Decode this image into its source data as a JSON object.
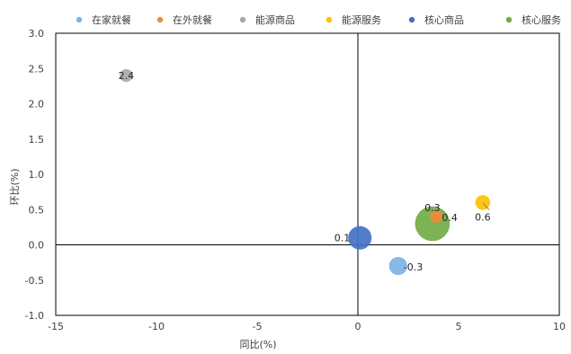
{
  "chart_data": {
    "type": "bubble",
    "xlabel": "同比(%)",
    "ylabel": "环比(%)",
    "xlim": [
      -15,
      10
    ],
    "ylim": [
      -1.0,
      3.0
    ],
    "x_ticks": [
      "-15",
      "-10",
      "-5",
      "0",
      "5",
      "10"
    ],
    "y_ticks": [
      "-1.0",
      "-0.5",
      "0.0",
      "0.5",
      "1.0",
      "1.5",
      "2.0",
      "2.5",
      "3.0"
    ],
    "grid": false,
    "legend_position": "top",
    "series": [
      {
        "name": "在家就餐",
        "color": "#7FB2E5",
        "points": [
          {
            "x": 2.0,
            "y": -0.3,
            "size": 0.6,
            "label": "-0.3"
          }
        ]
      },
      {
        "name": "在外就餐",
        "color": "#ED8B3B",
        "points": [
          {
            "x": 3.9,
            "y": 0.4,
            "size": 0.3,
            "label": "0.4"
          }
        ]
      },
      {
        "name": "能源商品",
        "color": "#A9A9A9",
        "points": [
          {
            "x": -11.5,
            "y": 2.4,
            "size": 0.3,
            "label": "2.4"
          }
        ]
      },
      {
        "name": "能源服务",
        "color": "#FFC000",
        "points": [
          {
            "x": 6.2,
            "y": 0.6,
            "size": 0.4,
            "label": "0.6"
          }
        ]
      },
      {
        "name": "核心商品",
        "color": "#4472C4",
        "points": [
          {
            "x": 0.1,
            "y": 0.1,
            "size": 1.0,
            "label": "0.1"
          }
        ]
      },
      {
        "name": "核心服务",
        "color": "#70AD47",
        "points": [
          {
            "x": 3.7,
            "y": 0.3,
            "size": 2.2,
            "label": "0.3"
          }
        ]
      }
    ]
  }
}
